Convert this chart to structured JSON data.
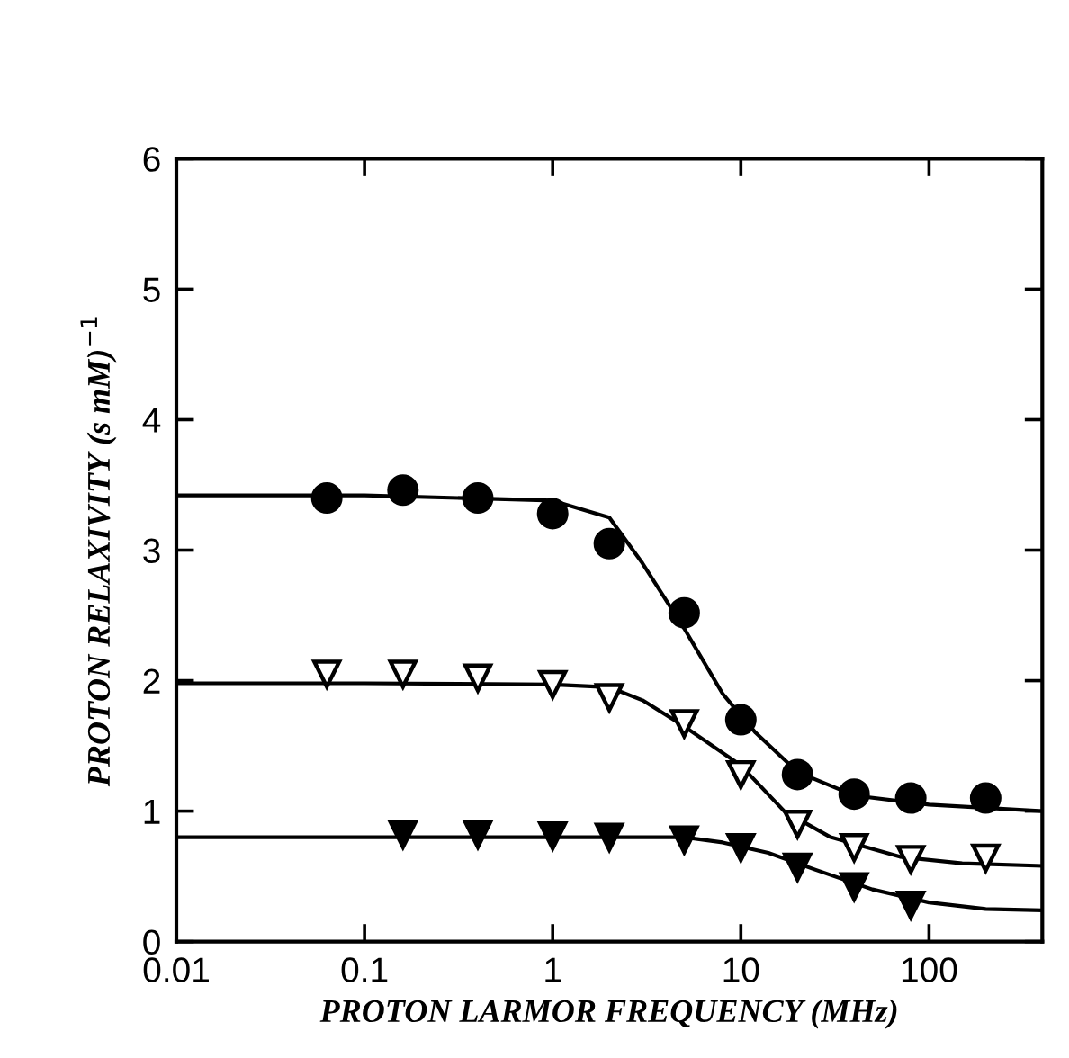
{
  "chart_data": {
    "type": "scatter",
    "xlabel": "PROTON LARMOR FREQUENCY (MHz)",
    "ylabel": "PROTON RELAXIVITY (s mM)$^{−1}$",
    "log": "x",
    "xlim": [
      0.01,
      400
    ],
    "xticks": [
      0.01,
      0.1,
      1,
      10,
      100
    ],
    "ylim": [
      0,
      6
    ],
    "yticks": [
      0,
      1,
      2,
      3,
      4,
      5,
      6
    ],
    "grid": false,
    "legend": false,
    "series": [
      {
        "marker": "circle",
        "color": "#000000",
        "x": [
          0.063,
          0.16,
          0.4,
          1,
          2,
          5,
          10,
          20,
          40,
          80,
          200
        ],
        "values": [
          3.4,
          3.46,
          3.4,
          3.28,
          3.05,
          2.52,
          1.7,
          1.28,
          1.13,
          1.1,
          1.1
        ]
      },
      {
        "marker": "triangle",
        "color": "#ffffff",
        "x": [
          0.063,
          0.16,
          0.4,
          1,
          2,
          5,
          10,
          20,
          40,
          80,
          200
        ],
        "values": [
          2.05,
          2.05,
          2.02,
          1.97,
          1.87,
          1.67,
          1.28,
          0.9,
          0.72,
          0.63,
          0.64
        ]
      },
      {
        "marker": "triangle",
        "color": "#000000",
        "x": [
          0.16,
          0.4,
          1,
          2,
          5,
          10,
          20,
          40,
          80
        ],
        "values": [
          0.82,
          0.82,
          0.81,
          0.8,
          0.78,
          0.72,
          0.57,
          0.42,
          0.28
        ]
      },
      {
        "type": "line",
        "color": "#000000",
        "x": [
          0.01,
          0.1,
          1,
          2,
          3,
          5,
          8,
          12,
          20,
          40,
          100,
          400
        ],
        "values": [
          3.42,
          3.42,
          3.38,
          3.25,
          2.9,
          2.4,
          1.9,
          1.6,
          1.3,
          1.12,
          1.05,
          1.0
        ]
      },
      {
        "type": "line",
        "color": "#000000",
        "x": [
          0.01,
          0.1,
          1,
          2,
          3,
          5,
          10,
          17,
          30,
          70,
          150,
          400
        ],
        "values": [
          1.98,
          1.98,
          1.97,
          1.95,
          1.85,
          1.65,
          1.35,
          1.0,
          0.8,
          0.65,
          0.6,
          0.58
        ]
      },
      {
        "type": "line",
        "color": "#000000",
        "x": [
          0.01,
          0.1,
          1,
          5,
          8,
          14,
          25,
          50,
          100,
          200,
          400
        ],
        "values": [
          0.8,
          0.8,
          0.8,
          0.8,
          0.76,
          0.68,
          0.55,
          0.4,
          0.3,
          0.25,
          0.24
        ]
      }
    ]
  }
}
